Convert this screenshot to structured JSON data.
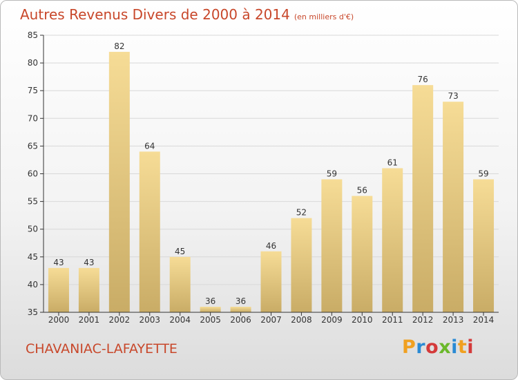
{
  "header": {
    "title": "Autres Revenus Divers de 2000 à 2014",
    "unit": "(en milliers d'€)"
  },
  "footer": {
    "commune": "CHAVANIAC-LAFAYETTE",
    "logo": "Proxiti",
    "logo_colors": [
      "#f0a020",
      "#2a8ad4",
      "#d43a3a",
      "#6ab82a",
      "#2a8ad4",
      "#f0a020",
      "#d43a3a"
    ]
  },
  "colors": {
    "title": "#c8472a",
    "bar_light": "#f6dc96",
    "bar_dark": "#c9ac66",
    "axis": "#333333",
    "grid": "#d8d8d8"
  },
  "chart_data": {
    "type": "bar",
    "title": "Autres Revenus Divers de 2000 à 2014",
    "subtitle": "(en milliers d'€)",
    "categories": [
      "2000",
      "2001",
      "2002",
      "2003",
      "2004",
      "2005",
      "2006",
      "2007",
      "2008",
      "2009",
      "2010",
      "2011",
      "2012",
      "2013",
      "2014"
    ],
    "values": [
      43,
      43,
      82,
      64,
      45,
      36,
      36,
      46,
      52,
      59,
      56,
      61,
      76,
      73,
      59
    ],
    "ylim": [
      35,
      85
    ],
    "yticks": [
      35,
      40,
      45,
      50,
      55,
      60,
      65,
      70,
      75,
      80,
      85
    ],
    "xlabel": "",
    "ylabel": "",
    "grid": true,
    "legend": "none"
  }
}
